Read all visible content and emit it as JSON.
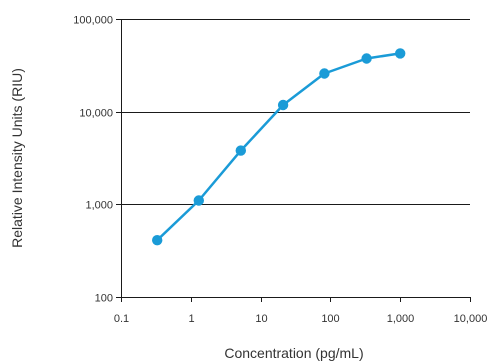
{
  "chart_data": {
    "type": "line",
    "title": "",
    "xlabel": "Concentration (pg/mL)",
    "ylabel": "Relative Intensity Units (RIU)",
    "x_scale": "log",
    "y_scale": "log",
    "xlim": [
      0.1,
      10000
    ],
    "ylim": [
      100,
      100000
    ],
    "x_ticks": [
      {
        "value": 0.1,
        "label": "0.1"
      },
      {
        "value": 1,
        "label": "1"
      },
      {
        "value": 10,
        "label": "10"
      },
      {
        "value": 100,
        "label": "100"
      },
      {
        "value": 1000,
        "label": "1,000"
      },
      {
        "value": 10000,
        "label": "10,000"
      }
    ],
    "y_ticks": [
      {
        "value": 100,
        "label": "100"
      },
      {
        "value": 1000,
        "label": "1,000"
      },
      {
        "value": 10000,
        "label": "10,000"
      },
      {
        "value": 100000,
        "label": "100,000"
      }
    ],
    "grid": {
      "horizontal": true,
      "vertical": false
    },
    "legend": "none",
    "series": [
      {
        "color": "#1a9bd7",
        "marker": "circle",
        "points": [
          {
            "x": 0.33,
            "y": 410
          },
          {
            "x": 1.3,
            "y": 1100
          },
          {
            "x": 5.2,
            "y": 3800
          },
          {
            "x": 21,
            "y": 11800
          },
          {
            "x": 82,
            "y": 25800
          },
          {
            "x": 330,
            "y": 37500
          },
          {
            "x": 1000,
            "y": 42500
          }
        ]
      }
    ]
  }
}
